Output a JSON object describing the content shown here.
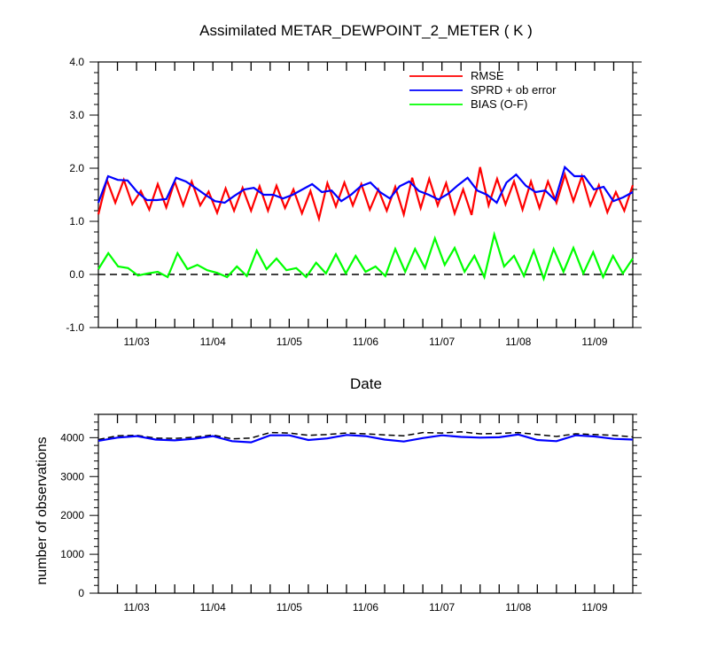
{
  "chart_data": [
    {
      "type": "line",
      "title": "Assimilated METAR_DEWPOINT_2_METER ( K )",
      "xlabel": "Date",
      "ylabel": "",
      "ylim": [
        -1.0,
        4.0
      ],
      "yticks": [
        "-1.0",
        "0.0",
        "1.0",
        "2.0",
        "3.0",
        "4.0"
      ],
      "xlim": [
        0,
        28
      ],
      "xtick_values": [
        2,
        6,
        10,
        14,
        18,
        22,
        26
      ],
      "xtick_labels": [
        "11/03",
        "11/04",
        "11/05",
        "11/06",
        "11/07",
        "11/08",
        "11/09"
      ],
      "legend_position": "top-right",
      "zero_line": true,
      "series": [
        {
          "name": "RMSE",
          "color": "#ff0000",
          "values": [
            1.13,
            1.78,
            1.35,
            1.78,
            1.32,
            1.57,
            1.22,
            1.7,
            1.26,
            1.75,
            1.3,
            1.75,
            1.3,
            1.56,
            1.16,
            1.62,
            1.2,
            1.63,
            1.2,
            1.66,
            1.2,
            1.67,
            1.25,
            1.6,
            1.15,
            1.57,
            1.05,
            1.72,
            1.28,
            1.73,
            1.3,
            1.7,
            1.22,
            1.6,
            1.2,
            1.65,
            1.13,
            1.82,
            1.25,
            1.8,
            1.3,
            1.72,
            1.15,
            1.6,
            1.12,
            2.02,
            1.3,
            1.8,
            1.32,
            1.75,
            1.22,
            1.75,
            1.25,
            1.75,
            1.35,
            1.88,
            1.38,
            1.85,
            1.3,
            1.68,
            1.17,
            1.55,
            1.2,
            1.68
          ]
        },
        {
          "name": "SPRD + ob error",
          "color": "#0000ff",
          "values": [
            1.35,
            1.85,
            1.78,
            1.77,
            1.55,
            1.4,
            1.4,
            1.42,
            1.82,
            1.75,
            1.63,
            1.5,
            1.38,
            1.35,
            1.48,
            1.6,
            1.63,
            1.5,
            1.5,
            1.43,
            1.5,
            1.6,
            1.7,
            1.55,
            1.58,
            1.38,
            1.5,
            1.66,
            1.73,
            1.55,
            1.43,
            1.66,
            1.75,
            1.57,
            1.5,
            1.41,
            1.52,
            1.68,
            1.82,
            1.58,
            1.5,
            1.35,
            1.73,
            1.88,
            1.67,
            1.55,
            1.58,
            1.4,
            2.02,
            1.85,
            1.85,
            1.6,
            1.65,
            1.38,
            1.45,
            1.55
          ]
        },
        {
          "name": "BIAS (O-F)",
          "color": "#00ff00",
          "values": [
            0.1,
            0.4,
            0.15,
            0.12,
            -0.02,
            0.02,
            0.05,
            -0.05,
            0.4,
            0.1,
            0.18,
            0.08,
            0.03,
            -0.05,
            0.15,
            -0.03,
            0.45,
            0.1,
            0.3,
            0.08,
            0.12,
            -0.05,
            0.22,
            0.02,
            0.38,
            0.02,
            0.35,
            0.05,
            0.15,
            -0.03,
            0.48,
            0.05,
            0.48,
            0.12,
            0.68,
            0.18,
            0.5,
            0.05,
            0.35,
            -0.05,
            0.75,
            0.15,
            0.35,
            -0.03,
            0.45,
            -0.08,
            0.48,
            0.05,
            0.5,
            0.02,
            0.42,
            -0.05,
            0.35,
            0.02,
            0.3
          ]
        }
      ]
    },
    {
      "type": "line",
      "title": "",
      "xlabel": "",
      "ylabel": "number of observations",
      "ylim": [
        0,
        4600
      ],
      "yticks": [
        "0",
        "1000",
        "2000",
        "3000",
        "4000"
      ],
      "xlim": [
        0,
        28
      ],
      "xtick_values": [
        2,
        6,
        10,
        14,
        18,
        22,
        26
      ],
      "xtick_labels": [
        "11/03",
        "11/04",
        "11/05",
        "11/06",
        "11/07",
        "11/08",
        "11/09"
      ],
      "series": [
        {
          "color": "#000000",
          "dashed": true,
          "values": [
            3950,
            4050,
            4060,
            3990,
            3980,
            4010,
            4070,
            3970,
            3990,
            4130,
            4120,
            4060,
            4080,
            4120,
            4100,
            4070,
            4050,
            4130,
            4120,
            4150,
            4100,
            4110,
            4130,
            4080,
            4030,
            4100,
            4080,
            4060,
            4020
          ]
        },
        {
          "color": "#0000ff",
          "dashed": false,
          "values": [
            3920,
            4000,
            4040,
            3950,
            3930,
            3970,
            4040,
            3910,
            3880,
            4060,
            4060,
            3940,
            3980,
            4070,
            4040,
            3950,
            3900,
            3990,
            4060,
            4020,
            4000,
            4010,
            4080,
            3940,
            3910,
            4060,
            4030,
            3970,
            3950
          ]
        }
      ]
    }
  ]
}
